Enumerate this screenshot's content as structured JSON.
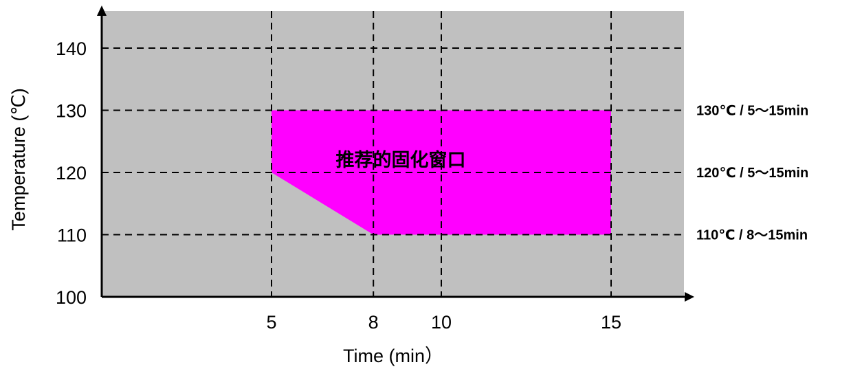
{
  "chart_data": {
    "type": "area",
    "xlabel": "Time (min）",
    "ylabel": "Temperature (℃)",
    "xlim": [
      0,
      20
    ],
    "ylim": [
      100,
      145
    ],
    "x_ticks": [
      5,
      8,
      10,
      15
    ],
    "y_ticks": [
      100,
      110,
      120,
      130,
      140
    ],
    "grid": true,
    "background_color": "#c0c0c0",
    "region": {
      "label": "推荐的固化窗口",
      "color": "#ff00ff",
      "polygon": [
        [
          5,
          130
        ],
        [
          15,
          130
        ],
        [
          15,
          110
        ],
        [
          8,
          110
        ],
        [
          5,
          120
        ]
      ]
    },
    "annotations": [
      {
        "y": 130,
        "text": "130℃ / 5～15min"
      },
      {
        "y": 120,
        "text": "120℃ / 5～15min"
      },
      {
        "y": 110,
        "text": "110℃ / 8～15min"
      }
    ]
  }
}
